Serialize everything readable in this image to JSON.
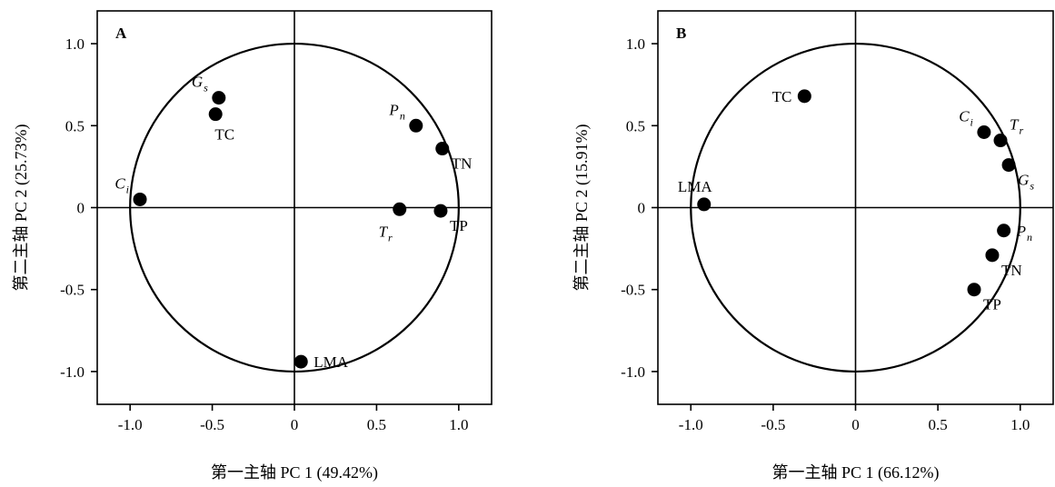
{
  "chart_data": [
    {
      "type": "scatter",
      "panel_label": "A",
      "xlabel": "第一主轴 PC 1 (49.42%)",
      "ylabel": "第二主轴 PC 2 (25.73%)",
      "xlim": [
        -1.2,
        1.2
      ],
      "ylim": [
        -1.2,
        1.2
      ],
      "xticks": [
        "-1.0",
        "-0.5",
        "0",
        "0.5",
        "1.0"
      ],
      "yticks": [
        "-1.0",
        "-0.5",
        "0",
        "0.5",
        "1.0"
      ],
      "unit_circle": true,
      "points": [
        {
          "label": "G",
          "sub": "s",
          "x": -0.46,
          "y": 0.67,
          "label_pos": "upper-left"
        },
        {
          "label": "TC",
          "x": -0.48,
          "y": 0.57,
          "label_pos": "below"
        },
        {
          "label": "C",
          "sub": "i",
          "x": -0.94,
          "y": 0.05,
          "label_pos": "upper-left"
        },
        {
          "label": "P",
          "sub": "n",
          "x": 0.74,
          "y": 0.5,
          "label_pos": "upper-left"
        },
        {
          "label": "TN",
          "x": 0.9,
          "y": 0.36,
          "label_pos": "lower-right"
        },
        {
          "label": "T",
          "sub": "r",
          "x": 0.64,
          "y": -0.01,
          "label_pos": "lower-left"
        },
        {
          "label": "TP",
          "x": 0.89,
          "y": -0.02,
          "label_pos": "lower-right"
        },
        {
          "label": "LMA",
          "x": 0.04,
          "y": -0.94,
          "label_pos": "right"
        }
      ]
    },
    {
      "type": "scatter",
      "panel_label": "B",
      "xlabel": "第一主轴 PC 1 (66.12%)",
      "ylabel": "第二主轴 PC 2 (15.91%)",
      "xlim": [
        -1.2,
        1.2
      ],
      "ylim": [
        -1.2,
        1.2
      ],
      "xticks": [
        "-1.0",
        "-0.5",
        "0",
        "0.5",
        "1.0"
      ],
      "yticks": [
        "-1.0",
        "-0.5",
        "0",
        "0.5",
        "1.0"
      ],
      "unit_circle": true,
      "points": [
        {
          "label": "TC",
          "x": -0.31,
          "y": 0.68,
          "label_pos": "left"
        },
        {
          "label": "C",
          "sub": "i",
          "x": 0.78,
          "y": 0.46,
          "label_pos": "upper-left"
        },
        {
          "label": "T",
          "sub": "r",
          "x": 0.88,
          "y": 0.41,
          "label_pos": "upper-right"
        },
        {
          "label": "G",
          "sub": "s",
          "x": 0.93,
          "y": 0.26,
          "label_pos": "lower-right"
        },
        {
          "label": "LMA",
          "x": -0.92,
          "y": 0.02,
          "label_pos": "above"
        },
        {
          "label": "P",
          "sub": "n",
          "x": 0.9,
          "y": -0.14,
          "label_pos": "right"
        },
        {
          "label": "TN",
          "x": 0.83,
          "y": -0.29,
          "label_pos": "lower-right"
        },
        {
          "label": "TP",
          "x": 0.72,
          "y": -0.5,
          "label_pos": "lower-right"
        }
      ]
    }
  ]
}
